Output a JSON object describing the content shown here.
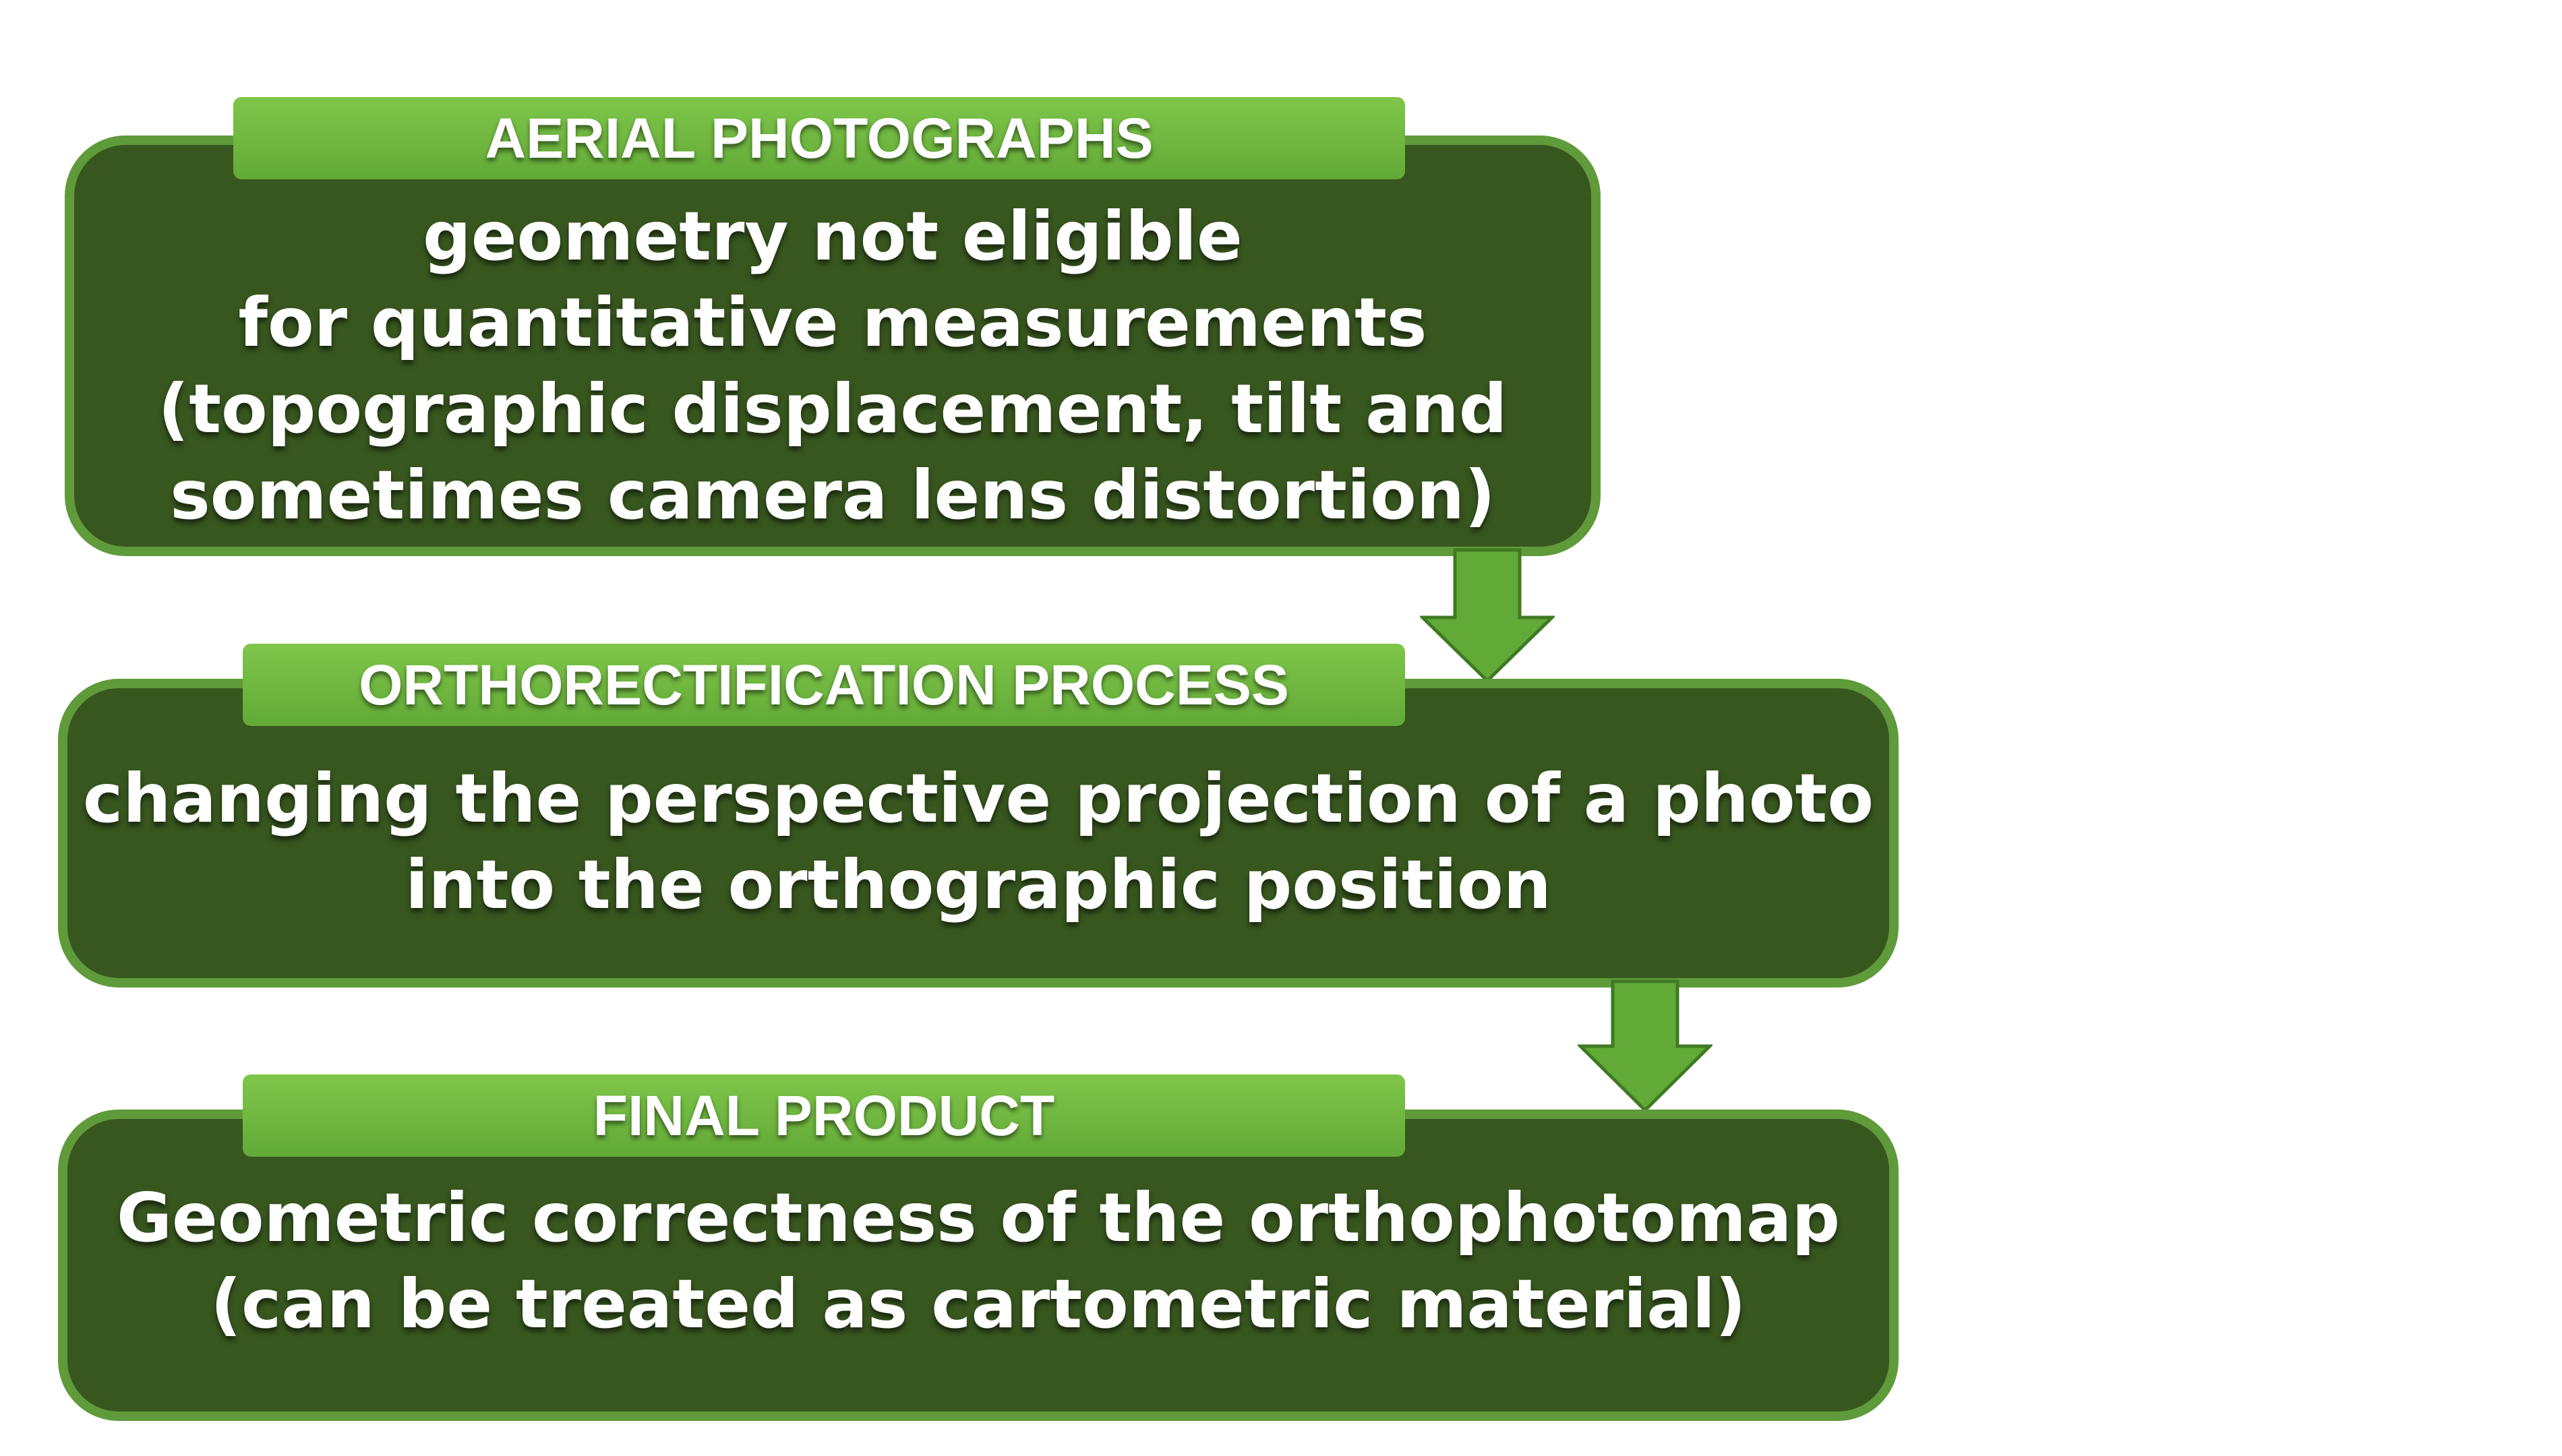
{
  "colors": {
    "box_fill": "#38571f",
    "box_border": "#5f9a3b",
    "tab_fill_top": "#7fc64a",
    "tab_fill_bottom": "#62aa37",
    "arrow_fill": "#62aa37",
    "arrow_stroke": "#3f7a22",
    "text": "#ffffff"
  },
  "steps": [
    {
      "heading": "AERIAL PHOTOGRAPHS",
      "lines": [
        "geometry not eligible",
        "for quantitative measurements",
        "(topographic displacement, tilt and",
        "sometimes camera lens distortion)"
      ]
    },
    {
      "heading": "ORTHORECTIFICATION PROCESS",
      "lines": [
        "changing the perspective projection of a photo",
        "into the orthographic position"
      ]
    },
    {
      "heading": "FINAL PRODUCT",
      "lines": [
        "Geometric correctness of the orthophotomap",
        "(can be treated as cartometric material)"
      ]
    }
  ],
  "connectors": [
    {
      "from": "AERIAL PHOTOGRAPHS",
      "to": "ORTHORECTIFICATION PROCESS",
      "icon": "down-arrow-icon"
    },
    {
      "from": "ORTHORECTIFICATION PROCESS",
      "to": "FINAL PRODUCT",
      "icon": "down-arrow-icon"
    }
  ]
}
